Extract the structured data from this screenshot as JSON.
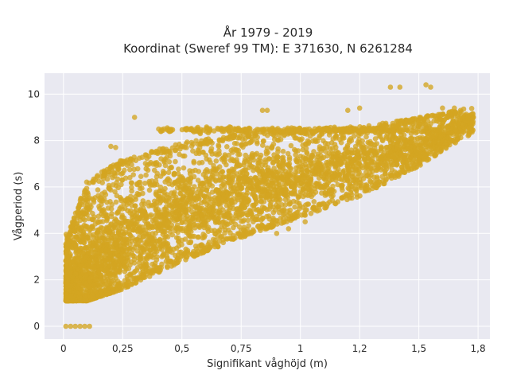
{
  "chart_data": {
    "type": "scatter",
    "title_line1": "År 1979 - 2019",
    "title_line2": "Koordinat (Sweref 99 TM): E 371630, N 6261284",
    "xlabel": "Signifikant våghöjd (m)",
    "ylabel": "Vågperiod (s)",
    "xlim": [
      -0.08,
      1.8
    ],
    "ylim": [
      -0.55,
      10.9
    ],
    "x_ticks": [
      0,
      0.25,
      0.5,
      0.75,
      1,
      1.25,
      1.5,
      1.75
    ],
    "x_tick_labels": [
      "0",
      "0,25",
      "0,5",
      "0,75",
      "1",
      "1,2",
      "1,5",
      "1,8"
    ],
    "y_ticks": [
      0,
      2,
      4,
      6,
      8,
      10
    ],
    "y_tick_labels": [
      "0",
      "2",
      "4",
      "6",
      "8",
      "10"
    ],
    "grid": true,
    "marker_color": "#d4a521",
    "background_color": "#e9e9f1",
    "point_cloud": {
      "upper_envelope": [
        [
          0.02,
          4.0
        ],
        [
          0.1,
          6.3
        ],
        [
          0.25,
          7.2
        ],
        [
          0.5,
          7.9
        ],
        [
          0.75,
          8.3
        ],
        [
          1.0,
          8.5
        ],
        [
          1.25,
          8.6
        ],
        [
          1.5,
          9.0
        ],
        [
          1.7,
          9.4
        ]
      ],
      "lower_envelope": [
        [
          0.02,
          1.1
        ],
        [
          0.1,
          1.1
        ],
        [
          0.25,
          1.6
        ],
        [
          0.5,
          2.8
        ],
        [
          0.75,
          3.8
        ],
        [
          1.0,
          4.7
        ],
        [
          1.25,
          5.6
        ],
        [
          1.5,
          6.9
        ],
        [
          1.7,
          8.2
        ]
      ],
      "main_ridge": [
        [
          0.05,
          1.6
        ],
        [
          0.2,
          3.0
        ],
        [
          0.5,
          4.9
        ],
        [
          0.75,
          5.7
        ],
        [
          1.0,
          6.3
        ],
        [
          1.25,
          7.0
        ],
        [
          1.5,
          7.7
        ],
        [
          1.7,
          8.8
        ]
      ],
      "zero_period_points": [
        [
          0.01,
          0
        ],
        [
          0.03,
          0
        ],
        [
          0.05,
          0
        ],
        [
          0.07,
          0
        ],
        [
          0.09,
          0
        ],
        [
          0.11,
          0
        ]
      ],
      "outliers": [
        [
          1.38,
          10.3
        ],
        [
          1.42,
          10.3
        ],
        [
          1.53,
          10.4
        ],
        [
          1.55,
          10.3
        ],
        [
          0.84,
          9.3
        ],
        [
          0.86,
          9.3
        ],
        [
          1.25,
          9.4
        ],
        [
          1.2,
          9.3
        ],
        [
          1.6,
          9.4
        ],
        [
          1.65,
          9.4
        ],
        [
          0.3,
          9.0
        ],
        [
          0.2,
          7.75
        ],
        [
          0.22,
          7.7
        ],
        [
          0.58,
          3.5
        ],
        [
          0.62,
          3.4
        ],
        [
          0.9,
          4.0
        ],
        [
          0.95,
          4.2
        ],
        [
          1.02,
          4.5
        ]
      ]
    }
  }
}
